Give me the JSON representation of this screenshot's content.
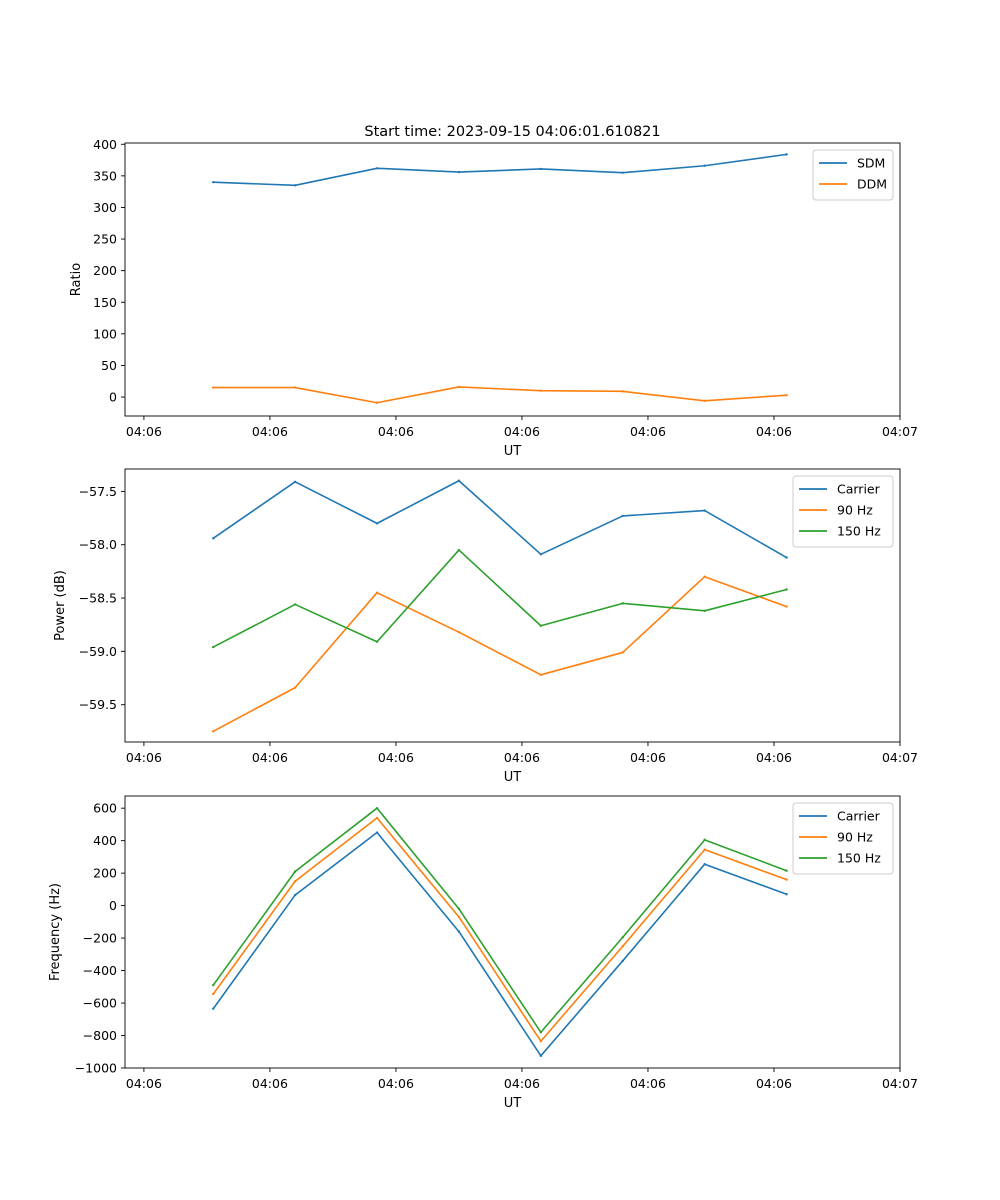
{
  "figure_title": "Start time: 2023-09-15 04:06:01.610821",
  "chart_data": [
    {
      "type": "line",
      "name": "ratio",
      "title": "Start time: 2023-09-15 04:06:01.610821",
      "xlabel": "UT",
      "ylabel": "Ratio",
      "x": [
        0.55,
        1.2,
        1.85,
        2.5,
        3.15,
        3.8,
        4.45,
        5.1
      ],
      "x_tick_values": [
        0,
        1,
        2,
        3,
        4,
        5,
        6
      ],
      "x_tick_labels": [
        "04:06",
        "04:06",
        "04:06",
        "04:06",
        "04:06",
        "04:06",
        "04:07"
      ],
      "xlim": [
        -0.15,
        6.0
      ],
      "ylim": [
        -30,
        402
      ],
      "y_ticks": [
        0,
        50,
        100,
        150,
        200,
        250,
        300,
        350,
        400
      ],
      "y_tick_labels": [
        "0",
        "50",
        "100",
        "150",
        "200",
        "250",
        "300",
        "350",
        "400"
      ],
      "legend_position": "top-right",
      "series": [
        {
          "name": "SDM",
          "color": "#1f77b4",
          "values": [
            340,
            335,
            362,
            356,
            361,
            355,
            366,
            384
          ]
        },
        {
          "name": "DDM",
          "color": "#ff7f0e",
          "values": [
            15,
            15,
            -9,
            16,
            10,
            9,
            -6,
            3
          ]
        }
      ]
    },
    {
      "type": "line",
      "name": "power",
      "xlabel": "UT",
      "ylabel": "Power (dB)",
      "x": [
        0.55,
        1.2,
        1.85,
        2.5,
        3.15,
        3.8,
        4.45,
        5.1
      ],
      "x_tick_values": [
        0,
        1,
        2,
        3,
        4,
        5,
        6
      ],
      "x_tick_labels": [
        "04:06",
        "04:06",
        "04:06",
        "04:06",
        "04:06",
        "04:06",
        "04:07"
      ],
      "xlim": [
        -0.15,
        6.0
      ],
      "ylim": [
        -59.85,
        -57.29
      ],
      "y_ticks": [
        -59.5,
        -59.0,
        -58.5,
        -58.0,
        -57.5
      ],
      "y_tick_labels": [
        "−59.5",
        "−59.0",
        "−58.5",
        "−58.0",
        "−57.5"
      ],
      "legend_position": "top-right",
      "series": [
        {
          "name": "Carrier",
          "color": "#1f77b4",
          "values": [
            -57.94,
            -57.41,
            -57.8,
            -57.4,
            -58.09,
            -57.73,
            -57.68,
            -58.12
          ]
        },
        {
          "name": "90 Hz",
          "color": "#ff7f0e",
          "values": [
            -59.75,
            -59.34,
            -58.45,
            -58.82,
            -59.22,
            -59.01,
            -58.3,
            -58.58
          ]
        },
        {
          "name": "150 Hz",
          "color": "#2ca02c",
          "values": [
            -58.96,
            -58.56,
            -58.91,
            -58.05,
            -58.76,
            -58.55,
            -58.62,
            -58.42
          ]
        }
      ]
    },
    {
      "type": "line",
      "name": "frequency",
      "xlabel": "UT",
      "ylabel": "Frequency (Hz)",
      "x": [
        0.55,
        1.2,
        1.85,
        2.5,
        3.15,
        3.8,
        4.45,
        5.1
      ],
      "x_tick_values": [
        0,
        1,
        2,
        3,
        4,
        5,
        6
      ],
      "x_tick_labels": [
        "04:06",
        "04:06",
        "04:06",
        "04:06",
        "04:06",
        "04:06",
        "04:07"
      ],
      "xlim": [
        -0.15,
        6.0
      ],
      "ylim": [
        -1000,
        675
      ],
      "y_ticks": [
        -1000,
        -800,
        -600,
        -400,
        -200,
        0,
        200,
        400,
        600
      ],
      "y_tick_labels": [
        "−1000",
        "−800",
        "−600",
        "−400",
        "−200",
        "0",
        "200",
        "400",
        "600"
      ],
      "legend_position": "top-right",
      "series": [
        {
          "name": "Carrier",
          "color": "#1f77b4",
          "values": [
            -635,
            65,
            450,
            -160,
            -925,
            -340,
            255,
            70
          ]
        },
        {
          "name": "90 Hz",
          "color": "#ff7f0e",
          "values": [
            -545,
            150,
            540,
            -70,
            -835,
            -250,
            345,
            160
          ]
        },
        {
          "name": "150 Hz",
          "color": "#2ca02c",
          "values": [
            -490,
            210,
            600,
            -20,
            -780,
            -195,
            405,
            215
          ]
        }
      ]
    }
  ]
}
